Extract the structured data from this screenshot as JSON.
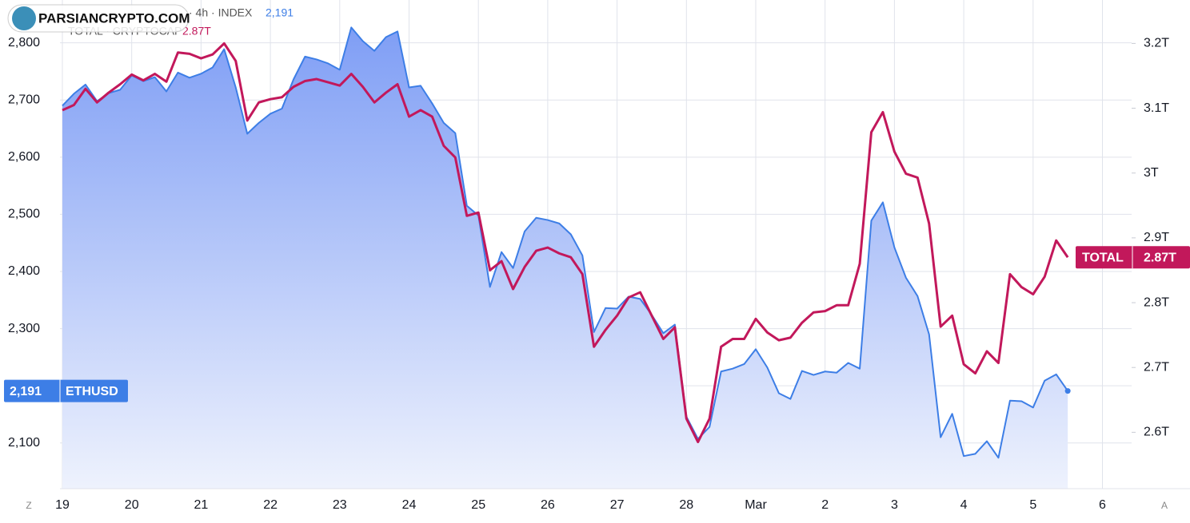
{
  "chart_data": {
    "type": "line",
    "watermark": "PARSIANCRYPTO.COM",
    "legend_lines": [
      "· 4h · INDEX",
      "TOTAL · CRYPTOCAP"
    ],
    "corner_buttons": [
      "Z",
      "A"
    ],
    "categories": [
      "19",
      null,
      null,
      null,
      null,
      null,
      "20",
      null,
      null,
      null,
      null,
      null,
      "21",
      null,
      null,
      null,
      null,
      null,
      "22",
      null,
      null,
      null,
      null,
      null,
      "23",
      null,
      null,
      null,
      null,
      null,
      "24",
      null,
      null,
      null,
      null,
      null,
      "25",
      null,
      null,
      null,
      null,
      null,
      "26",
      null,
      null,
      null,
      null,
      null,
      "27",
      null,
      null,
      null,
      null,
      null,
      "28",
      null,
      null,
      null,
      null,
      null,
      "Mar",
      null,
      null,
      null,
      null,
      null,
      "2",
      null,
      null,
      null,
      null,
      null,
      "3",
      null,
      null,
      null,
      null,
      null,
      "4",
      null,
      null,
      null,
      null,
      null,
      "5",
      null,
      null,
      null,
      null,
      null,
      "6"
    ],
    "ylim": [
      2020,
      2875
    ],
    "yticks": [
      {
        "value": 2100,
        "label": "2,100"
      },
      {
        "value": 2200,
        "label": "2,200"
      },
      {
        "value": 2300,
        "label": "2,300"
      },
      {
        "value": 2400,
        "label": "2,400"
      },
      {
        "value": 2500,
        "label": "2,500"
      },
      {
        "value": 2600,
        "label": "2,600"
      },
      {
        "value": 2700,
        "label": "2,700"
      },
      {
        "value": 2800,
        "label": "2,800"
      }
    ],
    "y2lim": [
      2.513,
      3.267
    ],
    "y2ticks": [
      {
        "value": 2.6,
        "label": "2.6T"
      },
      {
        "value": 2.7,
        "label": "2.7T"
      },
      {
        "value": 2.8,
        "label": "2.8T"
      },
      {
        "value": 2.9,
        "label": "2.9T"
      },
      {
        "value": 3,
        "label": "3T"
      },
      {
        "value": 3.1,
        "label": "3.1T"
      },
      {
        "value": 3.2,
        "label": "3.2T"
      }
    ],
    "grid": true,
    "series": [
      {
        "name": "ETHUSD",
        "color": "#3d7ee6",
        "area": true,
        "last_label": "2,191",
        "values": [
          2690,
          2711,
          2727,
          2698,
          2712,
          2718,
          2743,
          2733,
          2740,
          2715,
          2748,
          2739,
          2746,
          2757,
          2789,
          2722,
          2641,
          2660,
          2676,
          2685,
          2736,
          2776,
          2771,
          2764,
          2753,
          2827,
          2803,
          2786,
          2810,
          2820,
          2722,
          2725,
          2694,
          2660,
          2642,
          2515,
          2498,
          2373,
          2434,
          2406,
          2470,
          2494,
          2490,
          2484,
          2465,
          2428,
          2294,
          2336,
          2335,
          2356,
          2352,
          2324,
          2292,
          2307,
          2146,
          2107,
          2128,
          2225,
          2230,
          2238,
          2264,
          2232,
          2187,
          2177,
          2226,
          2219,
          2225,
          2223,
          2240,
          2230,
          2489,
          2521,
          2442,
          2389,
          2357,
          2290,
          2110,
          2151,
          2077,
          2081,
          2103,
          2074,
          2174,
          2173,
          2162,
          2209,
          2220,
          2191,
          null,
          null,
          null
        ]
      },
      {
        "name": "TOTAL",
        "color": "#c2185b",
        "axis": "y2",
        "last_label": "2.87T",
        "values": [
          3.097,
          3.105,
          3.13,
          3.109,
          3.124,
          3.137,
          3.152,
          3.143,
          3.153,
          3.141,
          3.186,
          3.184,
          3.177,
          3.183,
          3.2,
          3.173,
          3.081,
          3.109,
          3.114,
          3.117,
          3.133,
          3.142,
          3.145,
          3.14,
          3.135,
          3.153,
          3.133,
          3.109,
          3.124,
          3.137,
          3.087,
          3.097,
          3.087,
          3.042,
          3.024,
          2.934,
          2.939,
          2.85,
          2.864,
          2.821,
          2.855,
          2.88,
          2.885,
          2.876,
          2.87,
          2.844,
          2.732,
          2.758,
          2.78,
          2.808,
          2.816,
          2.78,
          2.744,
          2.762,
          2.621,
          2.585,
          2.621,
          2.732,
          2.744,
          2.744,
          2.775,
          2.754,
          2.742,
          2.746,
          2.769,
          2.785,
          2.787,
          2.796,
          2.796,
          2.86,
          3.063,
          3.094,
          3.033,
          2.999,
          2.993,
          2.922,
          2.763,
          2.78,
          2.705,
          2.691,
          2.725,
          2.707,
          2.844,
          2.824,
          2.813,
          2.84,
          2.896,
          2.87,
          null,
          null,
          null
        ]
      }
    ]
  }
}
